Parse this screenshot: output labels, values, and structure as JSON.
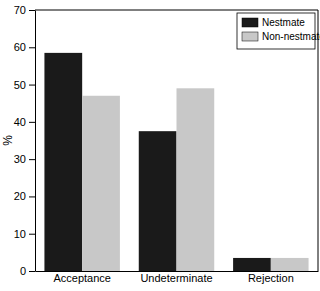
{
  "chart_data": {
    "type": "bar",
    "categories": [
      "Acceptance",
      "Undeterminate",
      "Rejection"
    ],
    "series": [
      {
        "name": "Nestmate",
        "color": "#1a1a1a",
        "values": [
          58.5,
          37.5,
          3.5
        ]
      },
      {
        "name": "Non-nestmate",
        "color": "#c8c8c8",
        "values": [
          47,
          49,
          3.5
        ]
      }
    ],
    "y_label": "%",
    "ylim": [
      0,
      70
    ],
    "yticks": [
      0,
      10,
      20,
      30,
      40,
      50,
      60,
      70
    ],
    "grid": false,
    "legend": "top-right"
  }
}
